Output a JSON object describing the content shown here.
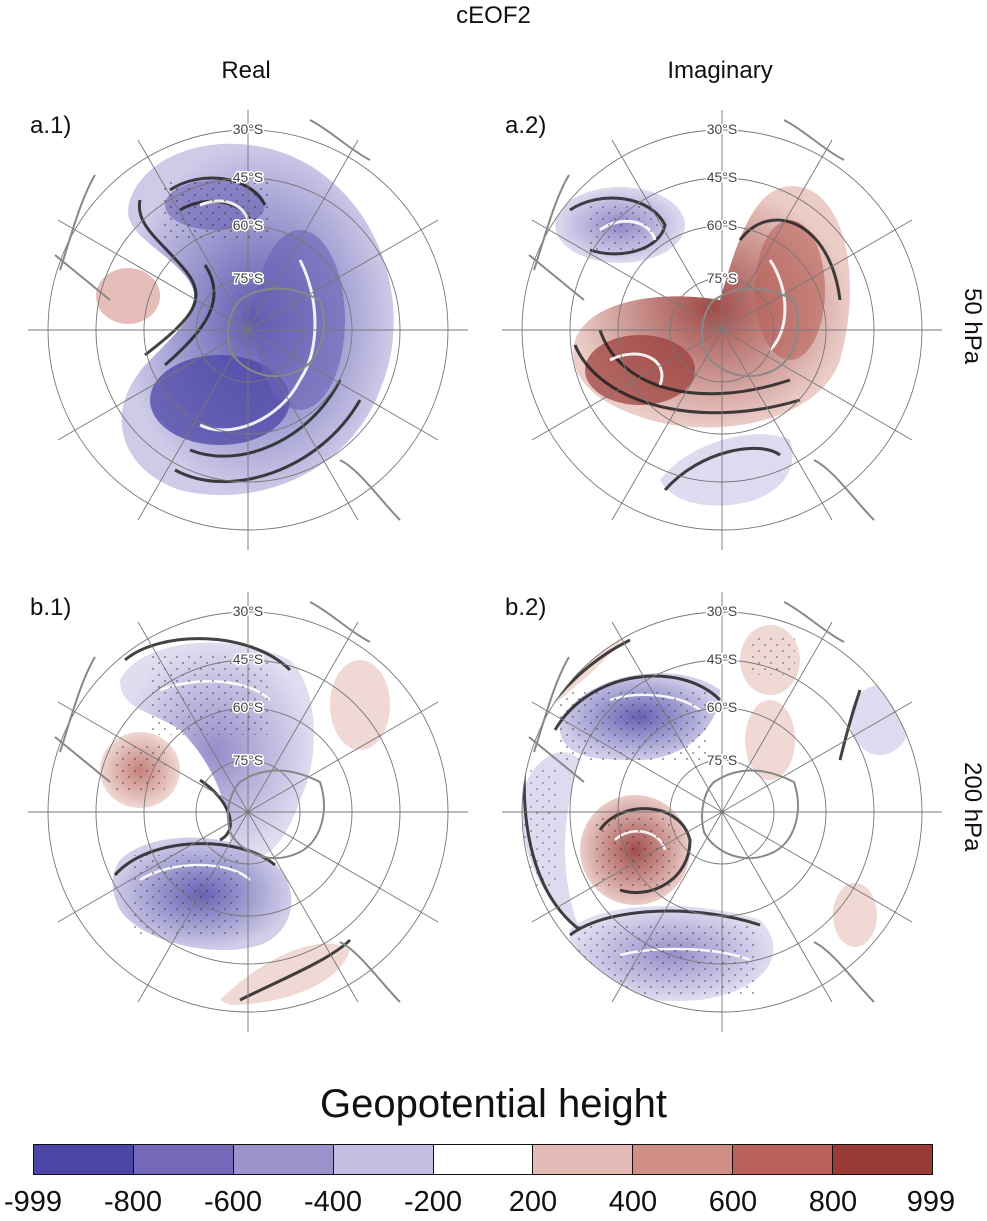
{
  "title": "cEOF2",
  "columns": [
    "Real",
    "Imaginary"
  ],
  "rows": [
    "50 hPa",
    "200 hPa"
  ],
  "panels": [
    {
      "label": "a.1)",
      "lat_labels": [
        "30°S",
        "45°S",
        "60°S",
        "75°S"
      ]
    },
    {
      "label": "a.2)",
      "lat_labels": [
        "30°S",
        "45°S",
        "60°S",
        "75°S"
      ]
    },
    {
      "label": "b.1)",
      "lat_labels": [
        "30°S",
        "45°S",
        "60°S",
        "75°S"
      ]
    },
    {
      "label": "b.2)",
      "lat_labels": [
        "30°S",
        "45°S",
        "60°S",
        "75°S"
      ]
    }
  ],
  "colorbar": {
    "title": "Geopotential height",
    "ticks": [
      "-999",
      "-800",
      "-600",
      "-400",
      "-200",
      "200",
      "400",
      "600",
      "800",
      "999"
    ],
    "colors": [
      "#4b45a6",
      "#7468b8",
      "#9b94cc",
      "#c3bfe2",
      "#ffffff",
      "#e4bbb6",
      "#d08f86",
      "#b8625a",
      "#983a36"
    ]
  }
}
